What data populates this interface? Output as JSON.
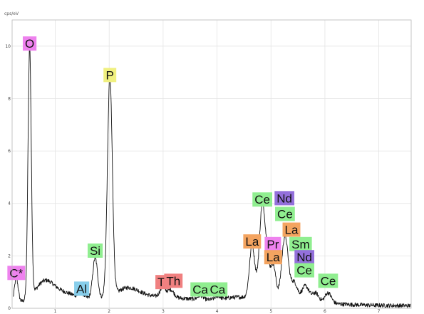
{
  "chart_data": {
    "type": "line",
    "title": "",
    "ylabel": "cps/eV",
    "xlabel": "",
    "xlim": [
      0.2,
      7.6
    ],
    "ylim": [
      0,
      11
    ],
    "grid": true,
    "x_ticks": [
      "1",
      "2",
      "3",
      "4",
      "5",
      "6",
      "7"
    ],
    "y_ticks": [
      "0",
      "2",
      "4",
      "6",
      "8",
      "10"
    ],
    "line_color": "#111111",
    "background": "0.1",
    "peaks": [
      {
        "x": 0.277,
        "h": 0.95,
        "w": 0.035
      },
      {
        "x": 0.525,
        "h": 9.55,
        "w": 0.03
      },
      {
        "x": 0.8,
        "h": 0.45,
        "w": 0.15
      },
      {
        "x": 1.49,
        "h": 0.15,
        "w": 0.05
      },
      {
        "x": 1.74,
        "h": 1.55,
        "w": 0.045
      },
      {
        "x": 2.013,
        "h": 8.4,
        "w": 0.045
      },
      {
        "x": 2.35,
        "h": 0.35,
        "w": 0.2
      },
      {
        "x": 2.99,
        "h": 0.35,
        "w": 0.05
      },
      {
        "x": 3.14,
        "h": 0.3,
        "w": 0.06
      },
      {
        "x": 3.69,
        "h": 0.15,
        "w": 0.05
      },
      {
        "x": 4.01,
        "h": 0.12,
        "w": 0.05
      },
      {
        "x": 4.651,
        "h": 2.0,
        "w": 0.05
      },
      {
        "x": 4.84,
        "h": 3.6,
        "w": 0.055
      },
      {
        "x": 4.935,
        "h": 1.0,
        "w": 0.04
      },
      {
        "x": 5.04,
        "h": 1.35,
        "w": 0.05
      },
      {
        "x": 5.26,
        "h": 2.45,
        "w": 0.06
      },
      {
        "x": 5.43,
        "h": 0.7,
        "w": 0.06
      },
      {
        "x": 5.64,
        "h": 0.6,
        "w": 0.07
      },
      {
        "x": 5.83,
        "h": 0.35,
        "w": 0.06
      },
      {
        "x": 6.06,
        "h": 0.4,
        "w": 0.06
      },
      {
        "x": 4.4,
        "h": 0.12,
        "w": 0.25
      }
    ],
    "element_labels": [
      {
        "text": "C*",
        "x": 0.277,
        "y": 1.35,
        "color": "#ee82ee"
      },
      {
        "text": "O",
        "x": 0.525,
        "y": 10.1,
        "color": "#ee82ee"
      },
      {
        "text": "Al",
        "x": 1.49,
        "y": 0.75,
        "color": "#87ceeb"
      },
      {
        "text": "Si",
        "x": 1.74,
        "y": 2.2,
        "color": "#90ee90"
      },
      {
        "text": "P",
        "x": 2.013,
        "y": 8.9,
        "color": "#f0f080"
      },
      {
        "text": "Tl",
        "x": 2.99,
        "y": 1.0,
        "color": "#f08080"
      },
      {
        "text": "Th",
        "x": 3.19,
        "y": 1.05,
        "color": "#f08080"
      },
      {
        "text": "Ca",
        "x": 3.69,
        "y": 0.72,
        "color": "#90ee90"
      },
      {
        "text": "Ca",
        "x": 4.01,
        "y": 0.72,
        "color": "#90ee90"
      },
      {
        "text": "La",
        "x": 4.651,
        "y": 2.55,
        "color": "#f4a460"
      },
      {
        "text": "Ce",
        "x": 4.84,
        "y": 4.15,
        "color": "#90ee90"
      },
      {
        "text": "Pr",
        "x": 5.035,
        "y": 2.45,
        "color": "#ee82ee"
      },
      {
        "text": "La",
        "x": 5.04,
        "y": 1.95,
        "color": "#f4a460"
      },
      {
        "text": "Nd",
        "x": 5.25,
        "y": 4.2,
        "color": "#9370db"
      },
      {
        "text": "Ce",
        "x": 5.26,
        "y": 3.6,
        "color": "#90ee90"
      },
      {
        "text": "La",
        "x": 5.38,
        "y": 3.0,
        "color": "#f4a460"
      },
      {
        "text": "Sm",
        "x": 5.55,
        "y": 2.45,
        "color": "#90ee90"
      },
      {
        "text": "Nd",
        "x": 5.62,
        "y": 1.95,
        "color": "#9370db"
      },
      {
        "text": "Ce",
        "x": 5.62,
        "y": 1.45,
        "color": "#90ee90"
      },
      {
        "text": "Ce",
        "x": 6.06,
        "y": 1.05,
        "color": "#90ee90"
      }
    ]
  }
}
